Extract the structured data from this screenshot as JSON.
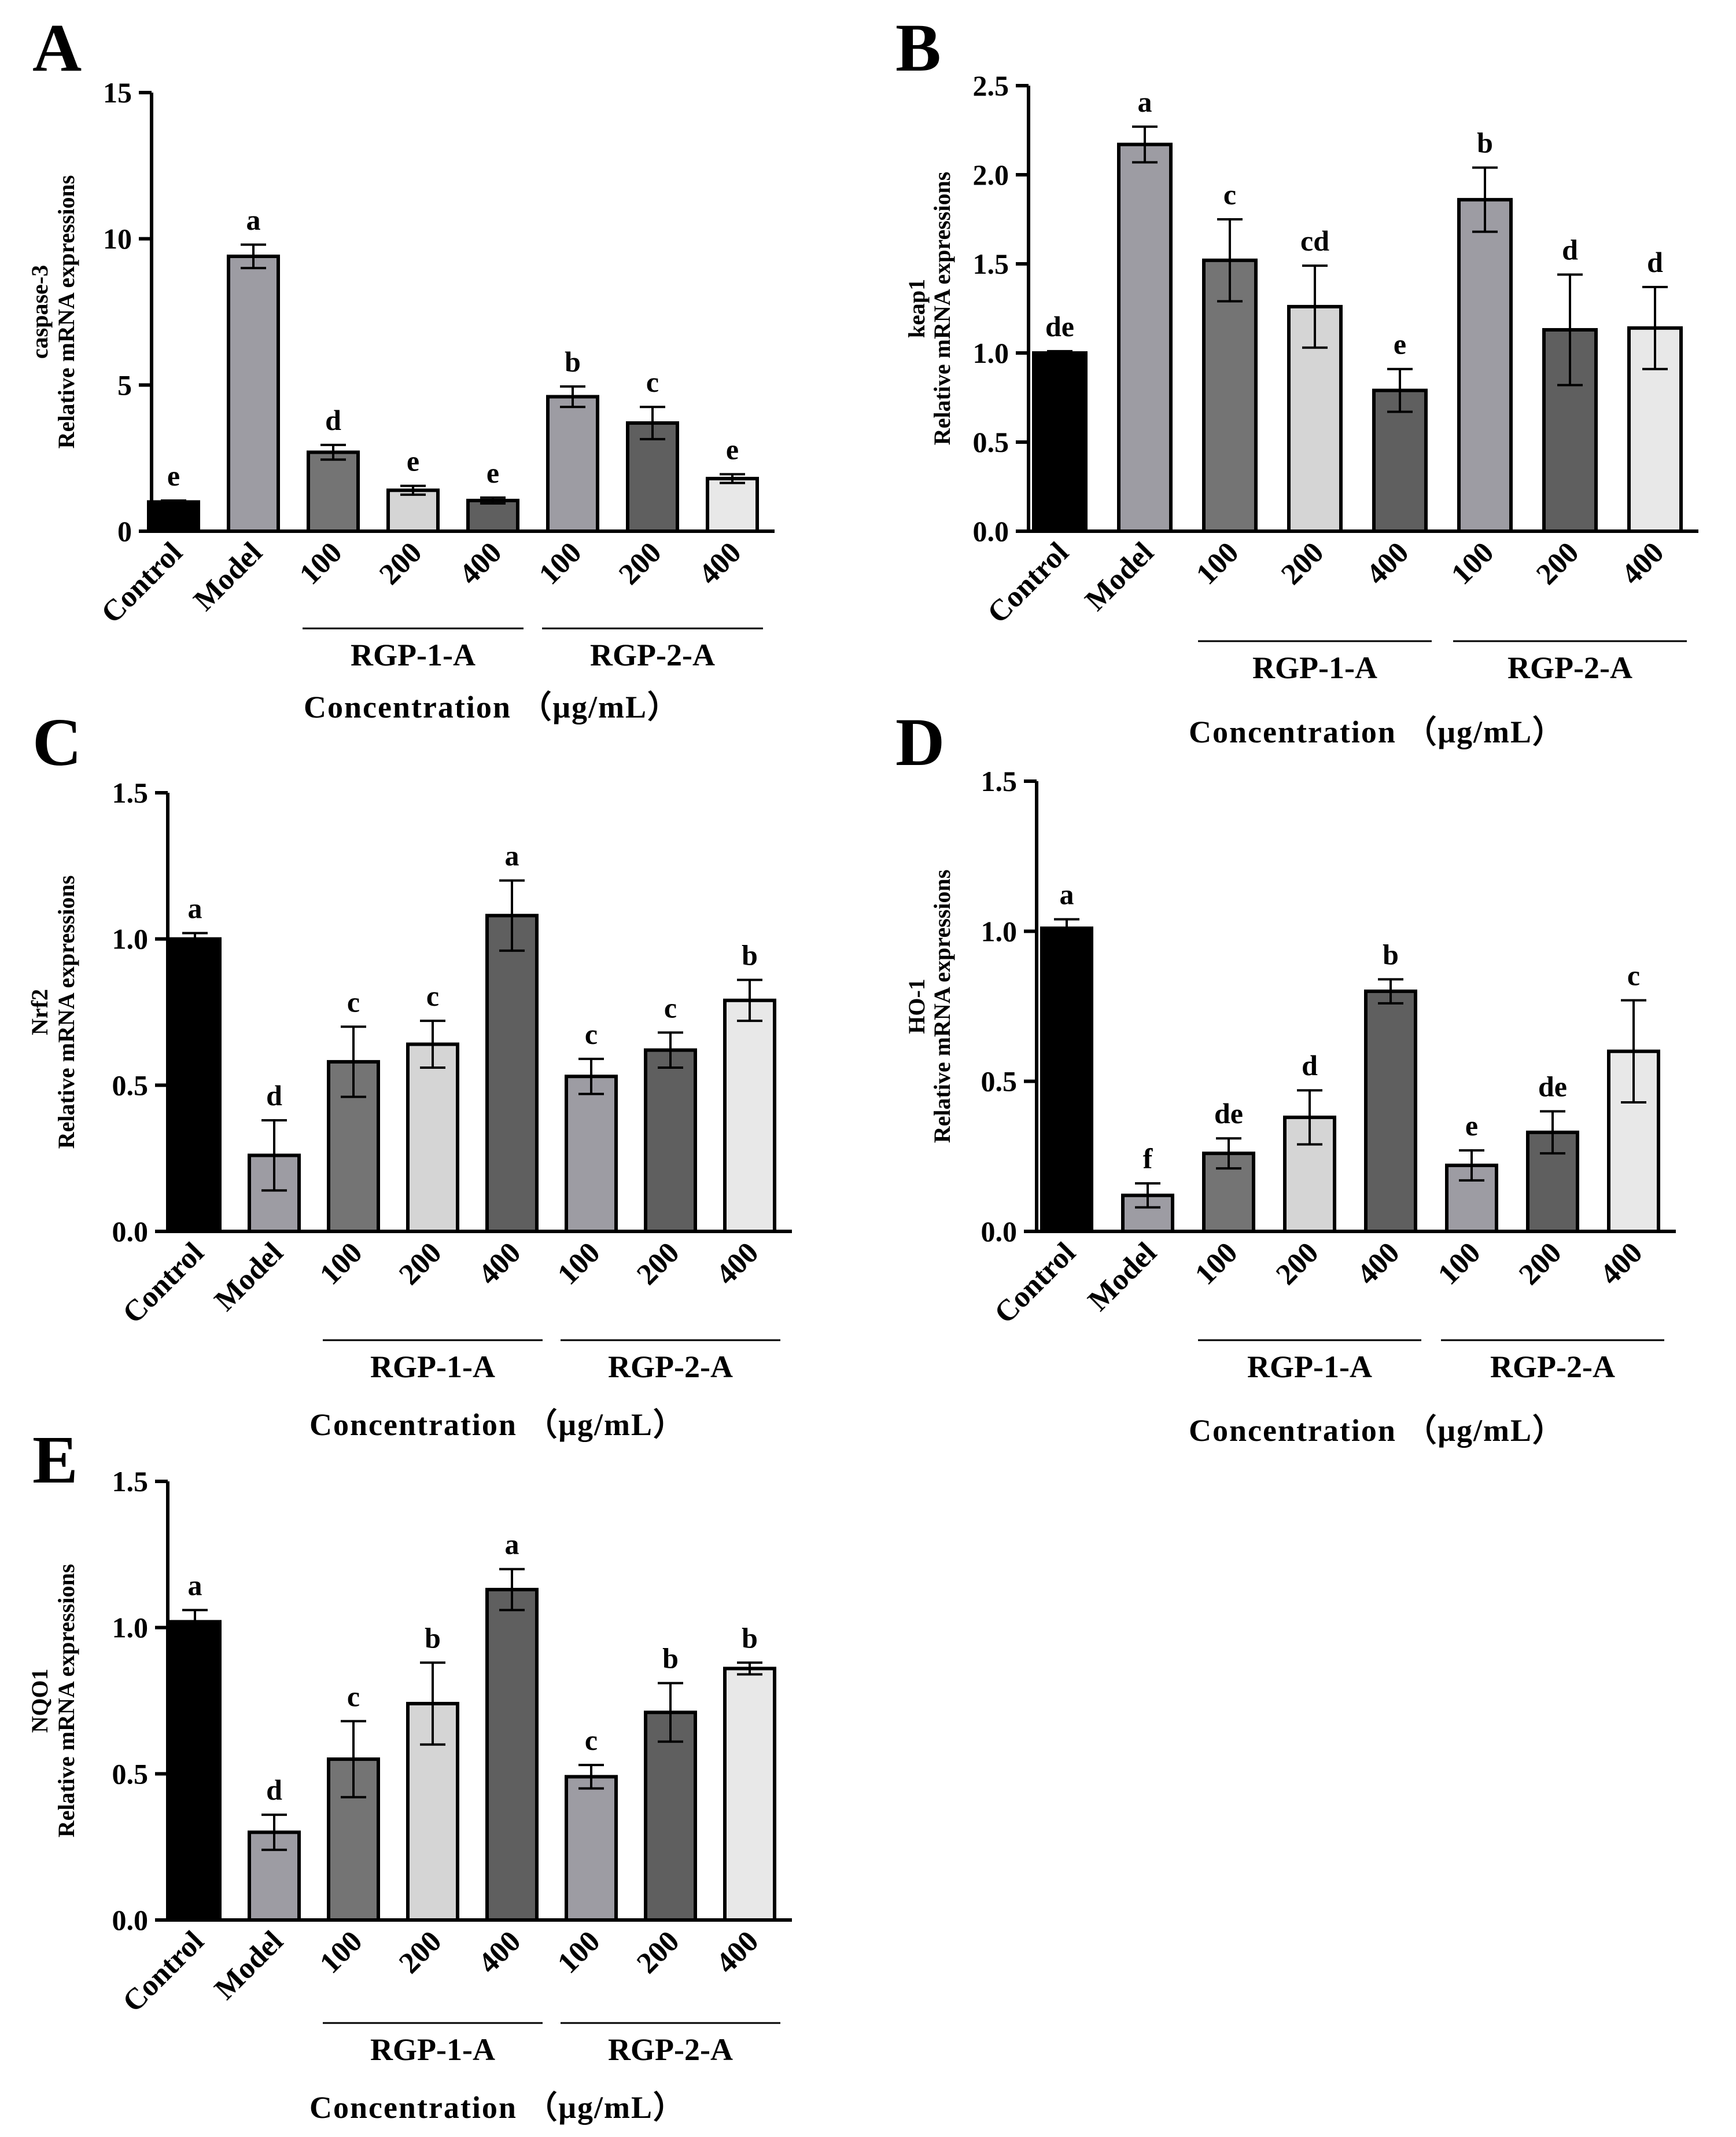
{
  "chart_data": [
    {
      "panel": "A",
      "type": "bar",
      "gene": "caspase-3",
      "ylabel": "Relative mRNA expressions",
      "xlabel": "Concentration （μg/mL）",
      "ylim": [
        0,
        15
      ],
      "yticks": [
        "0",
        "5",
        "10",
        "15"
      ],
      "categories": [
        "Control",
        "Model",
        "100",
        "200",
        "400",
        "100",
        "200",
        "400"
      ],
      "groups": [
        {
          "label": "RGP-1-A",
          "from": 2,
          "to": 4
        },
        {
          "label": "RGP-2-A",
          "from": 5,
          "to": 7
        }
      ],
      "values": [
        1.0,
        9.4,
        2.7,
        1.4,
        1.05,
        4.6,
        3.7,
        1.8
      ],
      "errors": [
        0.05,
        0.4,
        0.25,
        0.15,
        0.1,
        0.35,
        0.55,
        0.15
      ],
      "letters": [
        "e",
        "a",
        "d",
        "e",
        "e",
        "b",
        "c",
        "e"
      ],
      "colors": [
        "#000000",
        "#9d9ca3",
        "#747474",
        "#d5d5d5",
        "#5f5f5f",
        "#9d9ca3",
        "#5f5f5f",
        "#e8e8e8"
      ]
    },
    {
      "panel": "B",
      "type": "bar",
      "gene": "keap1",
      "ylabel": "Relative mRNA expressions",
      "xlabel": "Concentration （μg/mL）",
      "ylim": [
        0,
        2.5
      ],
      "yticks": [
        "0.0",
        "0.5",
        "1.0",
        "1.5",
        "2.0",
        "2.5"
      ],
      "categories": [
        "Control",
        "Model",
        "100",
        "200",
        "400",
        "100",
        "200",
        "400"
      ],
      "groups": [
        {
          "label": "RGP-1-A",
          "from": 2,
          "to": 4
        },
        {
          "label": "RGP-2-A",
          "from": 5,
          "to": 7
        }
      ],
      "values": [
        1.0,
        2.17,
        1.52,
        1.26,
        0.79,
        1.86,
        1.13,
        1.14
      ],
      "errors": [
        0.01,
        0.1,
        0.23,
        0.23,
        0.12,
        0.18,
        0.31,
        0.23
      ],
      "letters": [
        "de",
        "a",
        "c",
        "cd",
        "e",
        "b",
        "d",
        "d"
      ],
      "colors": [
        "#000000",
        "#9d9ca3",
        "#747474",
        "#d5d5d5",
        "#5f5f5f",
        "#9d9ca3",
        "#5f5f5f",
        "#e8e8e8"
      ]
    },
    {
      "panel": "C",
      "type": "bar",
      "gene": "Nrf2",
      "ylabel": "Relative mRNA expressions",
      "xlabel": "Concentration （μg/mL）",
      "ylim": [
        0,
        1.5
      ],
      "yticks": [
        "0.0",
        "0.5",
        "1.0",
        "1.5"
      ],
      "categories": [
        "Control",
        "Model",
        "100",
        "200",
        "400",
        "100",
        "200",
        "400"
      ],
      "groups": [
        {
          "label": "RGP-1-A",
          "from": 2,
          "to": 4
        },
        {
          "label": "RGP-2-A",
          "from": 5,
          "to": 7
        }
      ],
      "values": [
        1.0,
        0.26,
        0.58,
        0.64,
        1.08,
        0.53,
        0.62,
        0.79
      ],
      "errors": [
        0.02,
        0.12,
        0.12,
        0.08,
        0.12,
        0.06,
        0.06,
        0.07
      ],
      "letters": [
        "a",
        "d",
        "c",
        "c",
        "a",
        "c",
        "c",
        "b"
      ],
      "colors": [
        "#000000",
        "#9d9ca3",
        "#747474",
        "#d5d5d5",
        "#5f5f5f",
        "#9d9ca3",
        "#5f5f5f",
        "#e8e8e8"
      ]
    },
    {
      "panel": "D",
      "type": "bar",
      "gene": "HO-1",
      "ylabel": "Relative mRNA expressions",
      "xlabel": "Concentration （μg/mL）",
      "ylim": [
        0,
        1.5
      ],
      "yticks": [
        "0.0",
        "0.5",
        "1.0",
        "1.5"
      ],
      "categories": [
        "Control",
        "Model",
        "100",
        "200",
        "400",
        "100",
        "200",
        "400"
      ],
      "groups": [
        {
          "label": "RGP-1-A",
          "from": 2,
          "to": 4
        },
        {
          "label": "RGP-2-A",
          "from": 5,
          "to": 7
        }
      ],
      "values": [
        1.01,
        0.12,
        0.26,
        0.38,
        0.8,
        0.22,
        0.33,
        0.6
      ],
      "errors": [
        0.03,
        0.04,
        0.05,
        0.09,
        0.04,
        0.05,
        0.07,
        0.17
      ],
      "letters": [
        "a",
        "f",
        "de",
        "d",
        "b",
        "e",
        "de",
        "c"
      ],
      "colors": [
        "#000000",
        "#9d9ca3",
        "#747474",
        "#d5d5d5",
        "#5f5f5f",
        "#9d9ca3",
        "#5f5f5f",
        "#e8e8e8"
      ]
    },
    {
      "panel": "E",
      "type": "bar",
      "gene": "NQO1",
      "ylabel": "Relative mRNA expressions",
      "xlabel": "Concentration （μg/mL）",
      "ylim": [
        0,
        1.5
      ],
      "yticks": [
        "0.0",
        "0.5",
        "1.0",
        "1.5"
      ],
      "categories": [
        "Control",
        "Model",
        "100",
        "200",
        "400",
        "100",
        "200",
        "400"
      ],
      "groups": [
        {
          "label": "RGP-1-A",
          "from": 2,
          "to": 4
        },
        {
          "label": "RGP-2-A",
          "from": 5,
          "to": 7
        }
      ],
      "values": [
        1.02,
        0.3,
        0.55,
        0.74,
        1.13,
        0.49,
        0.71,
        0.86
      ],
      "errors": [
        0.04,
        0.06,
        0.13,
        0.14,
        0.07,
        0.04,
        0.1,
        0.02
      ],
      "letters": [
        "a",
        "d",
        "c",
        "b",
        "a",
        "c",
        "b",
        "b"
      ],
      "colors": [
        "#000000",
        "#9d9ca3",
        "#747474",
        "#d5d5d5",
        "#5f5f5f",
        "#9d9ca3",
        "#5f5f5f",
        "#e8e8e8"
      ]
    }
  ]
}
